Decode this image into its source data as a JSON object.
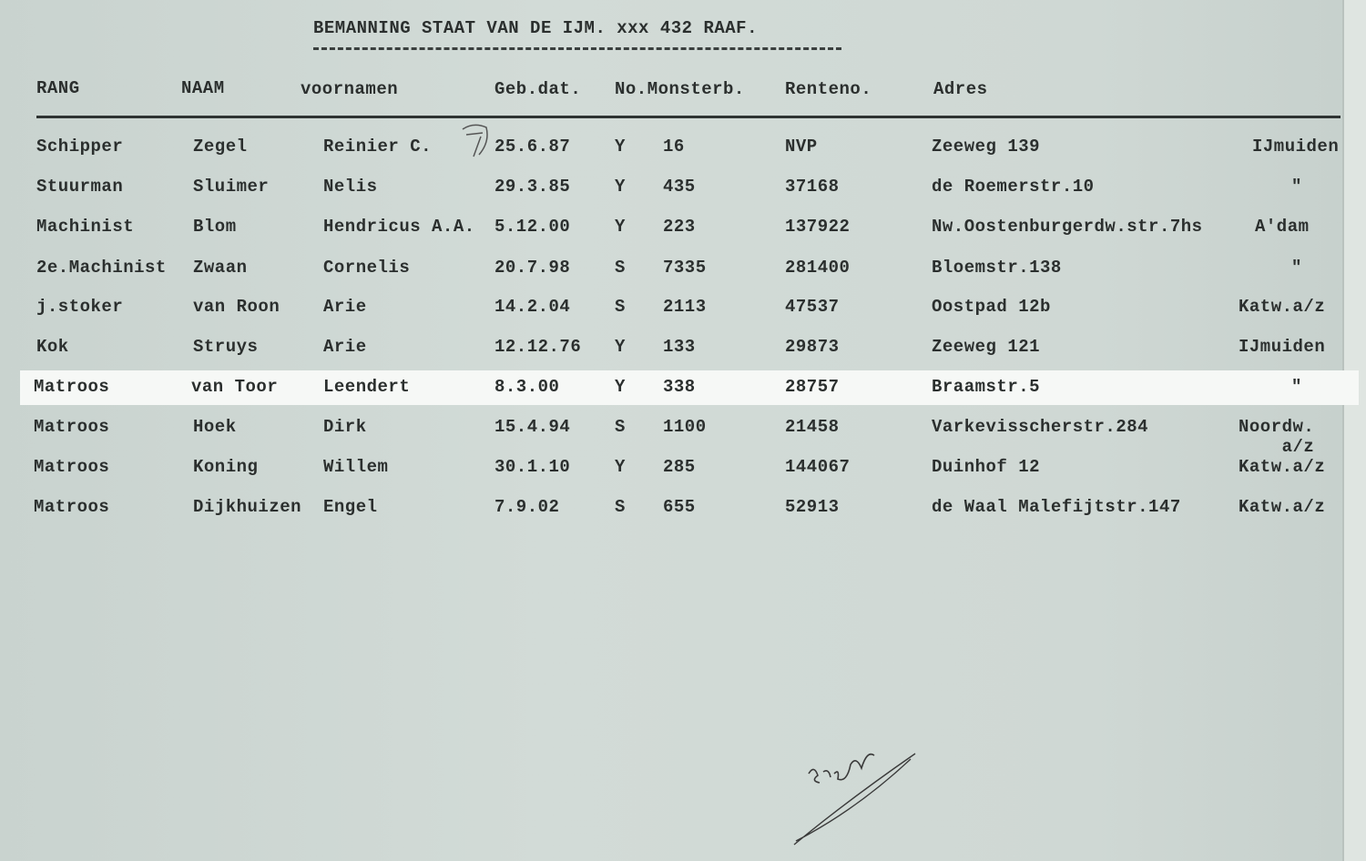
{
  "title": "BEMANNING STAAT VAN DE IJM. xxx 432  RAAF.",
  "headers": [
    "RANG",
    "NAAM",
    "voornamen",
    "Geb.dat.",
    "No.Monsterb.",
    "Renteno.",
    "Adres"
  ],
  "rows": [
    {
      "rang": "Schipper",
      "naam": "Zegel",
      "voornamen": "Reinier C.",
      "geb": "25.6.87",
      "code": "Y",
      "monsterb": "16",
      "renteno": "NVP",
      "adres": "Zeeweg 139",
      "plaats": "IJmuiden"
    },
    {
      "rang": "Stuurman",
      "naam": "Sluimer",
      "voornamen": "Nelis",
      "geb": "29.3.85",
      "code": "Y",
      "monsterb": "435",
      "renteno": "37168",
      "adres": "de Roemerstr.10",
      "plaats": "\""
    },
    {
      "rang": "Machinist",
      "naam": "Blom",
      "voornamen": "Hendricus A.A.",
      "geb": "5.12.00",
      "code": "Y",
      "monsterb": "223",
      "renteno": "137922",
      "adres": "Nw.Oostenburgerdw.str.7hs",
      "plaats": "A'dam"
    },
    {
      "rang": "2e.Machinist",
      "naam": "Zwaan",
      "voornamen": "Cornelis",
      "geb": "20.7.98",
      "code": "S",
      "monsterb": "7335",
      "renteno": "281400",
      "adres": "Bloemstr.138",
      "plaats": "\""
    },
    {
      "rang": "j.stoker",
      "naam": "van Roon",
      "voornamen": "Arie",
      "geb": "14.2.04",
      "code": "S",
      "monsterb": "2113",
      "renteno": "47537",
      "adres": "Oostpad 12b",
      "plaats": "Katw.a/z"
    },
    {
      "rang": "Kok",
      "naam": "Struys",
      "voornamen": "Arie",
      "geb": "12.12.76",
      "code": "Y",
      "monsterb": "133",
      "renteno": "29873",
      "adres": "Zeeweg 121",
      "plaats": "IJmuiden"
    },
    {
      "rang": "Matroos",
      "naam": "van Toor",
      "voornamen": "Leendert",
      "geb": "8.3.00",
      "code": "Y",
      "monsterb": "338",
      "renteno": "28757",
      "adres": "Braamstr.5",
      "plaats": "\""
    },
    {
      "rang": "Matroos",
      "naam": "Hoek",
      "voornamen": "Dirk",
      "geb": "15.4.94",
      "code": "S",
      "monsterb": "1100",
      "renteno": "21458",
      "adres": "Varkevisscherstr.284",
      "plaats": "Noordw. a/z"
    },
    {
      "rang": "Matroos",
      "naam": "Koning",
      "voornamen": "Willem",
      "geb": "30.1.10",
      "code": "Y",
      "monsterb": "285",
      "renteno": "144067",
      "adres": "Duinhof 12",
      "plaats": "Katw.a/z"
    },
    {
      "rang": "Matroos",
      "naam": "Dijkhuizen",
      "voornamen": "Engel",
      "geb": "7.9.02",
      "code": "S",
      "monsterb": "655",
      "renteno": "52913",
      "adres": "de Waal Malefijtstr.147",
      "plaats": "Katw.a/z"
    }
  ],
  "annotation": "F7",
  "signature": "Zegel",
  "highlight_row": 6
}
